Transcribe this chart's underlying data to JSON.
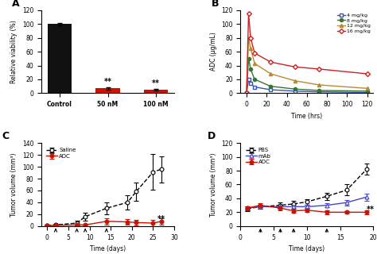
{
  "panel_A": {
    "categories": [
      "Control",
      "50 nM",
      "100 nM"
    ],
    "values": [
      100,
      7,
      5
    ],
    "errors": [
      1.5,
      1.5,
      1
    ],
    "colors": [
      "#111111",
      "#cc1100",
      "#cc1100"
    ],
    "ylabel": "Relative viability (%)",
    "ylim": [
      0,
      120
    ],
    "yticks": [
      0,
      20,
      40,
      60,
      80,
      100,
      120
    ],
    "sig_labels": [
      "",
      "**",
      "**"
    ]
  },
  "panel_B": {
    "time": [
      0,
      2,
      4,
      8,
      24,
      48,
      72,
      120
    ],
    "dose_4": [
      0,
      20,
      14,
      9,
      5,
      3,
      2,
      1
    ],
    "dose_8": [
      0,
      50,
      35,
      20,
      10,
      6,
      4,
      3
    ],
    "dose_12": [
      0,
      80,
      65,
      43,
      28,
      18,
      12,
      7
    ],
    "dose_16": [
      0,
      115,
      80,
      58,
      45,
      38,
      35,
      28
    ],
    "ylabel": "ADC (μg/mL)",
    "xlabel": "Time (hrs)",
    "ylim": [
      0,
      120
    ],
    "yticks": [
      0,
      20,
      40,
      60,
      80,
      100,
      120
    ],
    "xticks": [
      0,
      20,
      40,
      60,
      80,
      100,
      120
    ],
    "legend": [
      "4 mg/kg",
      "8 mg/kg",
      "12 mg/kg",
      "16 mg/kg"
    ],
    "colors": [
      "#3355bb",
      "#337733",
      "#bb8833",
      "#cc2222"
    ],
    "markers": [
      "s",
      "o",
      "^",
      "D"
    ]
  },
  "panel_C": {
    "time": [
      0,
      2,
      7,
      9,
      14,
      19,
      21,
      25,
      27
    ],
    "saline": [
      1,
      2,
      5,
      16,
      30,
      40,
      58,
      91,
      96
    ],
    "saline_err": [
      1,
      2,
      4,
      7,
      10,
      12,
      15,
      30,
      22
    ],
    "adc": [
      1,
      1,
      2,
      2,
      8,
      7,
      6,
      5,
      8
    ],
    "adc_err": [
      1,
      1,
      1,
      1,
      5,
      5,
      5,
      5,
      5
    ],
    "arrows": [
      2,
      7,
      9,
      14
    ],
    "ylabel": "Tumor volume (mm³)",
    "xlabel": "Time (days)",
    "ylim": [
      0,
      140
    ],
    "yticks": [
      0,
      20,
      40,
      60,
      80,
      100,
      120,
      140
    ],
    "xticks": [
      0,
      5,
      10,
      15,
      20,
      25,
      30
    ],
    "legend": [
      "Saline",
      "ADC"
    ],
    "sig_x": 27,
    "sig_y": 8,
    "sig_label": "**"
  },
  "panel_D": {
    "time": [
      1,
      3,
      6,
      8,
      10,
      13,
      16,
      19
    ],
    "pbs": [
      25,
      28,
      30,
      32,
      35,
      43,
      52,
      82
    ],
    "pbs_err": [
      3,
      3,
      4,
      4,
      4,
      5,
      8,
      8
    ],
    "mab": [
      26,
      28,
      28,
      28,
      28,
      30,
      34,
      42
    ],
    "mab_err": [
      3,
      3,
      3,
      3,
      3,
      3,
      4,
      5
    ],
    "adc": [
      26,
      30,
      26,
      22,
      23,
      20,
      20,
      20
    ],
    "adc_err": [
      3,
      3,
      3,
      3,
      3,
      3,
      2,
      3
    ],
    "arrows": [
      3,
      6,
      8,
      13
    ],
    "ylabel": "Tumor volume (mm³)",
    "xlabel": "Time (days)",
    "ylim": [
      0,
      120
    ],
    "yticks": [
      0,
      20,
      40,
      60,
      80,
      100,
      120
    ],
    "xticks": [
      0,
      5,
      10,
      15,
      20
    ],
    "legend": [
      "PBS",
      "mAb",
      "ADC"
    ],
    "sig_x": 19,
    "sig_y": 20,
    "sig_label": "**"
  }
}
